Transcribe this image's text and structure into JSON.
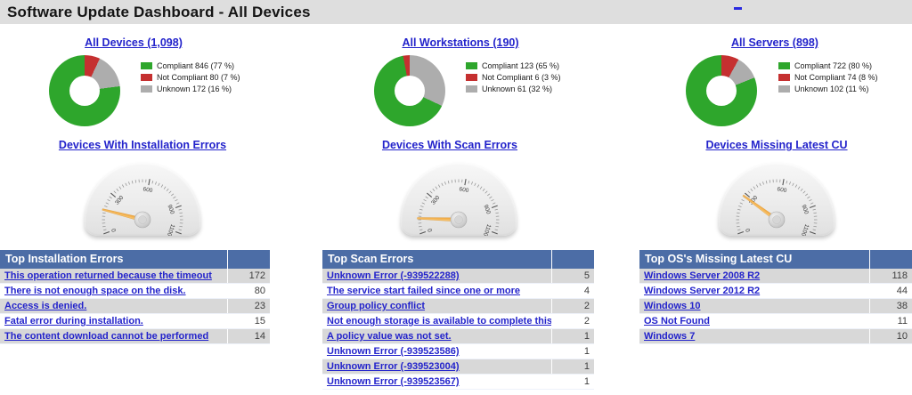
{
  "title_bar": {
    "title": "Software Update Dashboard - All Devices",
    "corner_dash": "-"
  },
  "colors": {
    "green": "#2ea62c",
    "red": "#c53030",
    "gray": "#adadad",
    "header_blue": "#4c6da6",
    "link_blue": "#2323cb",
    "titlebar_bg": "#dedede",
    "row_alt_gray": "#d8d8d8",
    "needle_orange": "#efa032"
  },
  "donuts": [
    {
      "title": "All Devices (1,098)",
      "legend": [
        {
          "color": "green",
          "text": "Compliant 846 (77 %)"
        },
        {
          "color": "red",
          "text": "Not Compliant 80 (7 %)"
        },
        {
          "color": "gray",
          "text": "Unknown 172 (16 %)"
        }
      ],
      "slices": [
        {
          "color": "red",
          "pct": 7
        },
        {
          "color": "gray",
          "pct": 16
        },
        {
          "color": "green",
          "pct": 77
        }
      ]
    },
    {
      "title": "All Workstations (190)",
      "legend": [
        {
          "color": "green",
          "text": "Compliant 123 (65 %)"
        },
        {
          "color": "red",
          "text": "Not Compliant 6 (3 %)"
        },
        {
          "color": "gray",
          "text": "Unknown 61 (32 %)"
        }
      ],
      "slices": [
        {
          "color": "gray",
          "pct": 32
        },
        {
          "color": "green",
          "pct": 65
        },
        {
          "color": "red",
          "pct": 3
        }
      ]
    },
    {
      "title": "All Servers (898)",
      "legend": [
        {
          "color": "green",
          "text": "Compliant 722 (80 %)"
        },
        {
          "color": "red",
          "text": "Not Compliant 74 (8 %)"
        },
        {
          "color": "gray",
          "text": "Unknown 102 (11 %)"
        }
      ],
      "slices": [
        {
          "color": "red",
          "pct": 8
        },
        {
          "color": "gray",
          "pct": 11
        },
        {
          "color": "green",
          "pct": 81
        }
      ]
    }
  ],
  "gauges": [
    {
      "title": "Devices With Installation Errors",
      "min": 0,
      "max": 1100,
      "tick_labels": [
        "0",
        "300",
        "600",
        "900",
        "1100"
      ],
      "needle_value": 172
    },
    {
      "title": "Devices With Scan Errors",
      "min": 0,
      "max": 1100,
      "tick_labels": [
        "0",
        "300",
        "600",
        "900",
        "1100"
      ],
      "needle_value": 110
    },
    {
      "title": "Devices Missing Latest CU",
      "min": 0,
      "max": 1100,
      "tick_labels": [
        "0",
        "300",
        "600",
        "900",
        "1100"
      ],
      "needle_value": 280
    }
  ],
  "tables": [
    {
      "header": "Top Installation Errors",
      "rows": [
        {
          "label": "This operation returned because the timeout ",
          "value": "172"
        },
        {
          "label": "There is not enough space on the disk.",
          "value": "80"
        },
        {
          "label": "Access is denied.",
          "value": "23"
        },
        {
          "label": "Fatal error during installation.",
          "value": "15"
        },
        {
          "label": "The content download cannot be performed ",
          "value": "14"
        }
      ]
    },
    {
      "header": "Top Scan Errors",
      "rows": [
        {
          "label": "Unknown Error (-939522288)",
          "value": "5"
        },
        {
          "label": "The service start failed since one or more ",
          "value": "4"
        },
        {
          "label": "Group policy conflict",
          "value": "2"
        },
        {
          "label": "Not enough storage is available to complete this ",
          "value": "2"
        },
        {
          "label": "A policy value was not set.",
          "value": "1"
        },
        {
          "label": "Unknown Error (-939523586)",
          "value": "1"
        },
        {
          "label": "Unknown Error (-939523004)",
          "value": "1"
        },
        {
          "label": "Unknown Error (-939523567)",
          "value": "1"
        }
      ]
    },
    {
      "header": "Top OS's Missing Latest CU",
      "rows": [
        {
          "label": "Windows Server 2008 R2",
          "value": "118"
        },
        {
          "label": "Windows Server 2012 R2",
          "value": "44"
        },
        {
          "label": "Windows 10",
          "value": "38"
        },
        {
          "label": "OS Not Found",
          "value": "11"
        },
        {
          "label": "Windows 7",
          "value": "10"
        }
      ]
    }
  ]
}
